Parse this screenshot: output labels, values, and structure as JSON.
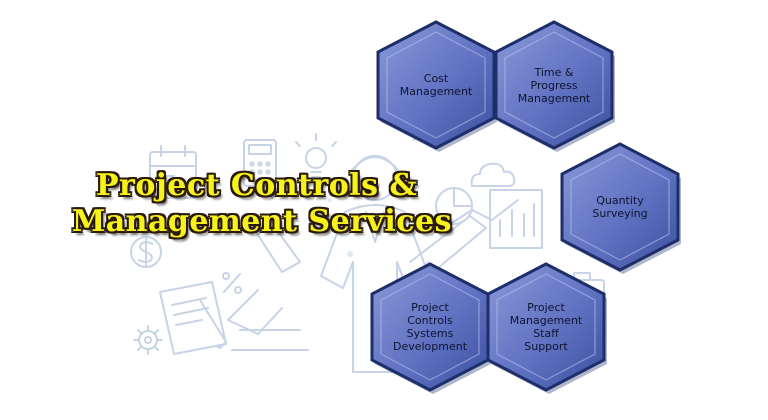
{
  "title": {
    "line1": "Project Controls &",
    "line2": "Management Services"
  },
  "services": [
    {
      "label": "Cost\nManagement"
    },
    {
      "label": "Time &\nProgress\nManagement"
    },
    {
      "label": "Quantity\nSurveying"
    },
    {
      "label": "Project\nControls\nSystems\nDevelopment"
    },
    {
      "label": "Project\nManagement\nStaff Support"
    }
  ],
  "colors": {
    "hex_fill_light": "#8a9ad8",
    "hex_fill_dark": "#3c4f9e",
    "hex_border": "#1d2e6a",
    "title_fill": "#f6f21a",
    "title_outline": "#2a1a0a",
    "illustration_line": "#c7d3e6"
  },
  "illustration_icons": [
    "calendar-icon",
    "calculator-icon",
    "lightbulb-icon",
    "gear-icon",
    "dollar-icon",
    "percent-icon",
    "document-icon",
    "pie-chart-icon",
    "bar-chart-icon",
    "cloud-icon",
    "briefcase-icon",
    "businessman-figure"
  ]
}
